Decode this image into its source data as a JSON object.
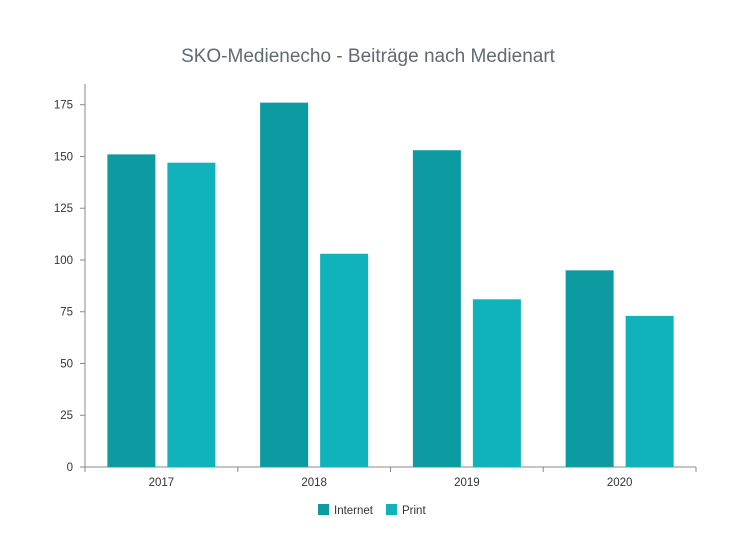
{
  "chart_data": {
    "type": "bar",
    "title": "SKO-Medienecho - Beiträge nach Medienart",
    "xlabel": "",
    "ylabel": "",
    "categories": [
      "2017",
      "2018",
      "2019",
      "2020"
    ],
    "series": [
      {
        "name": "Internet",
        "values": [
          151,
          176,
          153,
          95
        ],
        "color": "#0d9aa0"
      },
      {
        "name": "Print",
        "values": [
          147,
          103,
          81,
          73
        ],
        "color": "#10b3bb"
      }
    ],
    "ylim": [
      0,
      185
    ],
    "yticks": [
      0,
      25,
      50,
      75,
      100,
      125,
      150,
      175
    ],
    "grid": false,
    "legend": "bottom-center"
  }
}
